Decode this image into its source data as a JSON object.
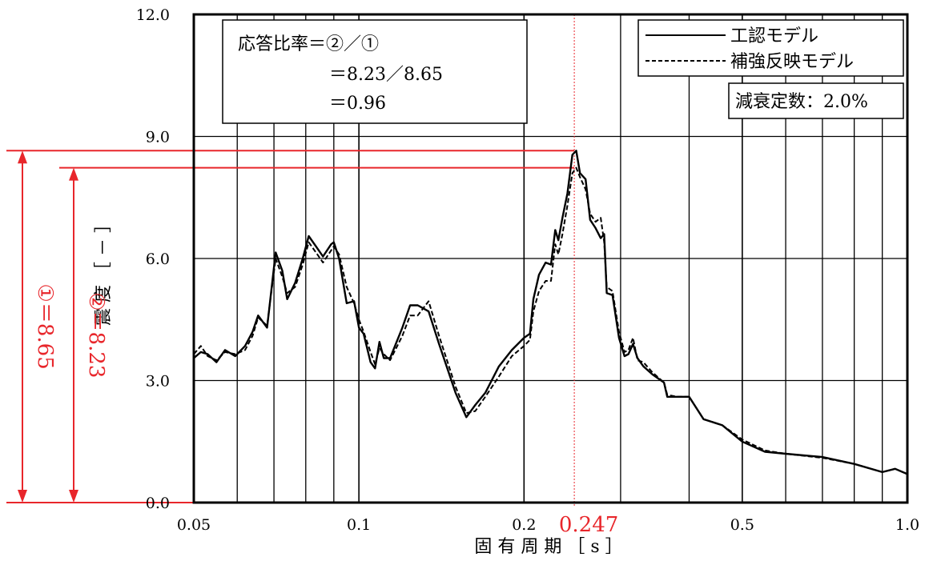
{
  "chart_data": {
    "type": "line",
    "xlabel": "固 有 周 期 ［ s ］",
    "ylabel": "震 度 ［ － ］",
    "x_scale": "log",
    "xlim": [
      0.05,
      1.0
    ],
    "ylim": [
      0,
      12
    ],
    "x_ticks": [
      {
        "value": 0.05,
        "label": "0.05"
      },
      {
        "value": 0.1,
        "label": "0.1"
      },
      {
        "value": 0.2,
        "label": "0.2"
      },
      {
        "value": 0.5,
        "label": "0.5"
      },
      {
        "value": 1.0,
        "label": "1.0"
      }
    ],
    "y_ticks": [
      {
        "value": 0,
        "label": "0.0"
      },
      {
        "value": 3,
        "label": "3.0"
      },
      {
        "value": 6,
        "label": "6.0"
      },
      {
        "value": 9,
        "label": "9.0"
      },
      {
        "value": 12,
        "label": "12.0"
      }
    ],
    "minor_x_gridlines": [
      0.06,
      0.07,
      0.08,
      0.09,
      0.3,
      0.4,
      0.6,
      0.7,
      0.8,
      0.9
    ],
    "grid": true,
    "legend_position": "top-right",
    "series": [
      {
        "name": "工認モデル",
        "style": "solid",
        "points": [
          [
            0.05,
            3.55
          ],
          [
            0.0515,
            3.7
          ],
          [
            0.053,
            3.65
          ],
          [
            0.055,
            3.45
          ],
          [
            0.057,
            3.75
          ],
          [
            0.0595,
            3.6
          ],
          [
            0.062,
            3.85
          ],
          [
            0.064,
            4.2
          ],
          [
            0.0655,
            4.6
          ],
          [
            0.068,
            4.3
          ],
          [
            0.0705,
            6.15
          ],
          [
            0.0725,
            5.7
          ],
          [
            0.074,
            5.0
          ],
          [
            0.0765,
            5.4
          ],
          [
            0.079,
            6.0
          ],
          [
            0.081,
            6.55
          ],
          [
            0.0835,
            6.3
          ],
          [
            0.086,
            6.05
          ],
          [
            0.089,
            6.35
          ],
          [
            0.09,
            6.4
          ],
          [
            0.092,
            6.0
          ],
          [
            0.095,
            4.9
          ],
          [
            0.098,
            4.95
          ],
          [
            0.1,
            4.3
          ],
          [
            0.102,
            4.15
          ],
          [
            0.105,
            3.45
          ],
          [
            0.107,
            3.3
          ],
          [
            0.109,
            3.95
          ],
          [
            0.111,
            3.55
          ],
          [
            0.114,
            3.55
          ],
          [
            0.12,
            4.3
          ],
          [
            0.124,
            4.85
          ],
          [
            0.128,
            4.85
          ],
          [
            0.134,
            4.7
          ],
          [
            0.14,
            3.9
          ],
          [
            0.15,
            2.7
          ],
          [
            0.157,
            2.1
          ],
          [
            0.163,
            2.4
          ],
          [
            0.17,
            2.7
          ],
          [
            0.18,
            3.35
          ],
          [
            0.19,
            3.75
          ],
          [
            0.2,
            4.05
          ],
          [
            0.205,
            4.15
          ],
          [
            0.208,
            5.0
          ],
          [
            0.213,
            5.6
          ],
          [
            0.219,
            5.9
          ],
          [
            0.224,
            5.85
          ],
          [
            0.228,
            6.7
          ],
          [
            0.231,
            6.45
          ],
          [
            0.235,
            7.0
          ],
          [
            0.24,
            7.6
          ],
          [
            0.245,
            8.55
          ],
          [
            0.249,
            8.65
          ],
          [
            0.253,
            8.1
          ],
          [
            0.259,
            7.95
          ],
          [
            0.264,
            6.95
          ],
          [
            0.27,
            6.75
          ],
          [
            0.276,
            6.5
          ],
          [
            0.28,
            6.6
          ],
          [
            0.283,
            5.15
          ],
          [
            0.29,
            5.1
          ],
          [
            0.298,
            4.05
          ],
          [
            0.305,
            3.6
          ],
          [
            0.31,
            3.65
          ],
          [
            0.316,
            3.9
          ],
          [
            0.322,
            3.55
          ],
          [
            0.33,
            3.35
          ],
          [
            0.343,
            3.15
          ],
          [
            0.36,
            2.95
          ],
          [
            0.365,
            2.6
          ],
          [
            0.38,
            2.6
          ],
          [
            0.4,
            2.6
          ],
          [
            0.425,
            2.05
          ],
          [
            0.46,
            1.9
          ],
          [
            0.5,
            1.5
          ],
          [
            0.55,
            1.25
          ],
          [
            0.6,
            1.2
          ],
          [
            0.7,
            1.12
          ],
          [
            0.8,
            0.95
          ],
          [
            0.9,
            0.75
          ],
          [
            0.95,
            0.83
          ],
          [
            1.0,
            0.7
          ]
        ]
      },
      {
        "name": "補強反映モデル",
        "style": "dashed",
        "points": [
          [
            0.05,
            3.65
          ],
          [
            0.0515,
            3.85
          ],
          [
            0.053,
            3.6
          ],
          [
            0.055,
            3.5
          ],
          [
            0.057,
            3.7
          ],
          [
            0.0595,
            3.65
          ],
          [
            0.062,
            3.75
          ],
          [
            0.064,
            4.1
          ],
          [
            0.0655,
            4.55
          ],
          [
            0.068,
            4.35
          ],
          [
            0.0705,
            6.0
          ],
          [
            0.0725,
            5.55
          ],
          [
            0.074,
            5.15
          ],
          [
            0.0765,
            5.3
          ],
          [
            0.079,
            5.85
          ],
          [
            0.081,
            6.4
          ],
          [
            0.0835,
            6.15
          ],
          [
            0.086,
            5.9
          ],
          [
            0.089,
            6.2
          ],
          [
            0.09,
            6.3
          ],
          [
            0.092,
            6.1
          ],
          [
            0.095,
            5.3
          ],
          [
            0.098,
            4.9
          ],
          [
            0.1,
            4.5
          ],
          [
            0.102,
            4.2
          ],
          [
            0.105,
            3.7
          ],
          [
            0.107,
            3.4
          ],
          [
            0.109,
            3.8
          ],
          [
            0.111,
            3.65
          ],
          [
            0.114,
            3.5
          ],
          [
            0.12,
            4.1
          ],
          [
            0.124,
            4.6
          ],
          [
            0.128,
            4.6
          ],
          [
            0.134,
            4.95
          ],
          [
            0.14,
            4.1
          ],
          [
            0.15,
            2.85
          ],
          [
            0.157,
            2.2
          ],
          [
            0.163,
            2.25
          ],
          [
            0.17,
            2.6
          ],
          [
            0.18,
            3.1
          ],
          [
            0.19,
            3.6
          ],
          [
            0.2,
            3.85
          ],
          [
            0.205,
            4.0
          ],
          [
            0.208,
            4.7
          ],
          [
            0.213,
            5.2
          ],
          [
            0.219,
            5.45
          ],
          [
            0.224,
            5.45
          ],
          [
            0.228,
            6.35
          ],
          [
            0.231,
            6.1
          ],
          [
            0.235,
            6.6
          ],
          [
            0.24,
            7.3
          ],
          [
            0.245,
            8.1
          ],
          [
            0.249,
            8.23
          ],
          [
            0.253,
            8.0
          ],
          [
            0.259,
            7.7
          ],
          [
            0.264,
            7.1
          ],
          [
            0.27,
            6.9
          ],
          [
            0.276,
            7.0
          ],
          [
            0.28,
            6.4
          ],
          [
            0.283,
            5.3
          ],
          [
            0.29,
            5.2
          ],
          [
            0.298,
            4.2
          ],
          [
            0.305,
            3.7
          ],
          [
            0.31,
            3.75
          ],
          [
            0.316,
            4.05
          ],
          [
            0.322,
            3.5
          ],
          [
            0.33,
            3.45
          ],
          [
            0.343,
            3.2
          ],
          [
            0.36,
            2.95
          ],
          [
            0.365,
            2.65
          ],
          [
            0.38,
            2.6
          ],
          [
            0.4,
            2.6
          ],
          [
            0.425,
            2.05
          ],
          [
            0.46,
            1.9
          ],
          [
            0.5,
            1.55
          ],
          [
            0.55,
            1.28
          ],
          [
            0.6,
            1.2
          ],
          [
            0.7,
            1.1
          ],
          [
            0.8,
            0.95
          ],
          [
            0.9,
            0.75
          ],
          [
            0.95,
            0.83
          ],
          [
            1.0,
            0.7
          ]
        ]
      }
    ],
    "annotations": {
      "ratio_box": {
        "line1": "応答比率＝②／①",
        "line2": "＝8.23／8.65",
        "line3": "＝0.96"
      },
      "damping": "減衰定数：2.0%",
      "period_marker": {
        "x": 0.247,
        "label": "0.247"
      },
      "peak1": {
        "value": 8.65,
        "label": "①＝8.65"
      },
      "peak2": {
        "value": 8.23,
        "label": "②＝8.23"
      }
    },
    "colors": {
      "marker": "#e8262b",
      "line": "#000000",
      "grid": "#000000"
    }
  }
}
